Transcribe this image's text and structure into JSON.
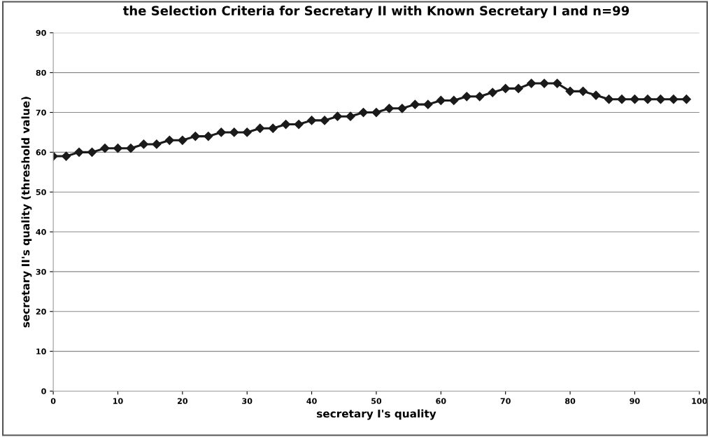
{
  "chart_data": {
    "type": "line",
    "title": "the Selection Criteria for Secretary II with Known Secretary I and n=99",
    "xlabel": "secretary I's quality",
    "ylabel": "secretary II's quality (threshold value)",
    "x": [
      0,
      2,
      4,
      6,
      8,
      10,
      12,
      14,
      16,
      18,
      20,
      22,
      24,
      26,
      28,
      30,
      32,
      34,
      36,
      38,
      40,
      42,
      44,
      46,
      48,
      50,
      52,
      54,
      56,
      58,
      60,
      62,
      64,
      66,
      68,
      70,
      72,
      74,
      76,
      78,
      80,
      82,
      84,
      86,
      88,
      90,
      92,
      94,
      96,
      98
    ],
    "series": [
      {
        "color": "#1a1a1a",
        "values": [
          59,
          59,
          60,
          60,
          61,
          61,
          61,
          62,
          62,
          63,
          63,
          64,
          64,
          65,
          65,
          65,
          66,
          66,
          67,
          67,
          68,
          68,
          69,
          69,
          70,
          70,
          71,
          71,
          72,
          72,
          73,
          73,
          74,
          74,
          75,
          76,
          76,
          77.3,
          77.3,
          77.3,
          75.3,
          75.3,
          74.3,
          73.3,
          73.3,
          73.3,
          73.3,
          73.3,
          73.3,
          73.3
        ]
      }
    ],
    "xlim": [
      0,
      100
    ],
    "xticks": [
      0,
      10,
      20,
      30,
      40,
      50,
      60,
      70,
      80,
      90,
      100
    ],
    "ylim": [
      0,
      90
    ],
    "yticks": [
      0,
      10,
      20,
      30,
      40,
      50,
      60,
      70,
      80,
      90
    ],
    "grid": "y",
    "marker": "diamond",
    "line_style": "solid",
    "legend": false
  }
}
